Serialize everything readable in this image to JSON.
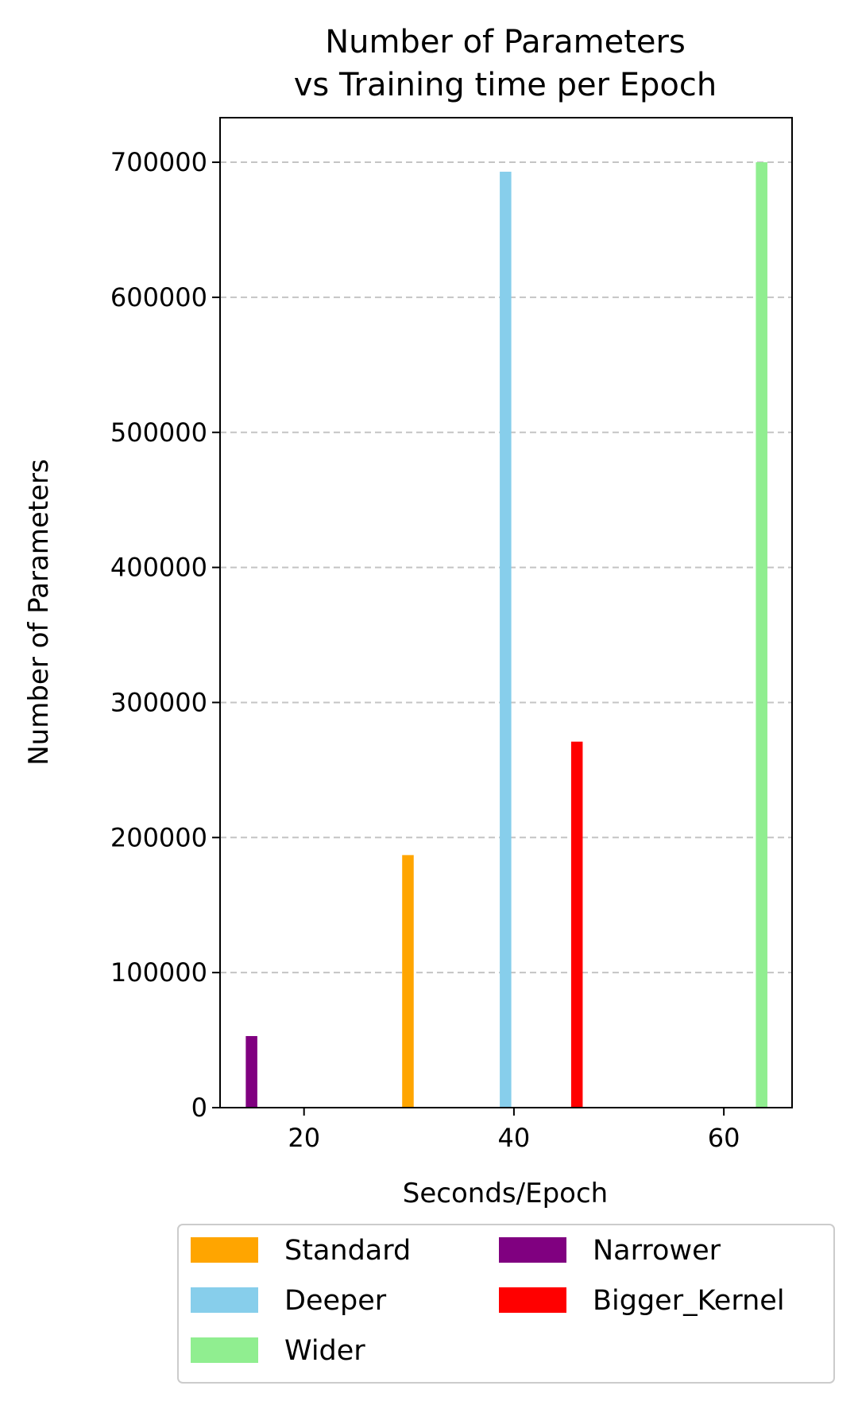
{
  "chart_data": {
    "type": "bar",
    "title": [
      "Number of Parameters",
      "vs Training time per Epoch"
    ],
    "xlabel": "Seconds/Epoch",
    "ylabel": "Number of Parameters",
    "xlim": [
      12,
      66.5
    ],
    "ylim": [
      0,
      733000
    ],
    "xticks": [
      20,
      40,
      60
    ],
    "yticks": [
      0,
      100000,
      200000,
      300000,
      400000,
      500000,
      600000,
      700000
    ],
    "grid": "y-dashed",
    "bar_width_x": 1.1,
    "legend": {
      "placement": "below",
      "columns": 2
    },
    "series": [
      {
        "name": "Standard",
        "x": 29.9,
        "value": 187000,
        "color": "#ffa500"
      },
      {
        "name": "Deeper",
        "x": 39.2,
        "value": 693000,
        "color": "#87ceeb"
      },
      {
        "name": "Wider",
        "x": 63.6,
        "value": 700000,
        "color": "#90ee90"
      },
      {
        "name": "Narrower",
        "x": 15.0,
        "value": 53000,
        "color": "#800080"
      },
      {
        "name": "Bigger_Kernel",
        "x": 46.0,
        "value": 271000,
        "color": "#ff0000"
      }
    ]
  }
}
